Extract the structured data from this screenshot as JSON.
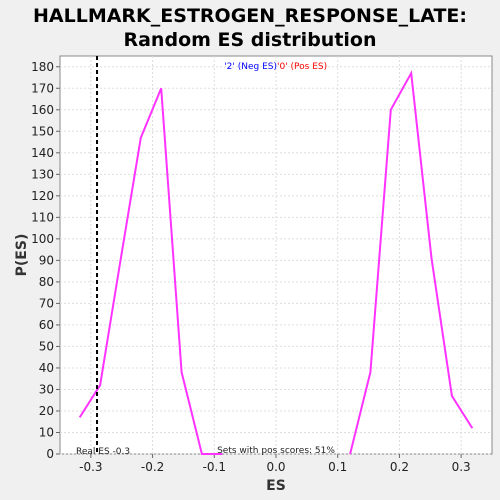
{
  "chart_data": {
    "type": "line",
    "title_line1": "HALLMARK_ESTROGEN_RESPONSE_LATE:",
    "title_line2": "Random ES distribution",
    "xlabel": "ES",
    "ylabel": "P(ES)",
    "xlim": [
      -0.35,
      0.35
    ],
    "ylim": [
      0,
      185
    ],
    "xticks": [
      -0.3,
      -0.2,
      -0.1,
      0.0,
      0.1,
      0.2,
      0.3
    ],
    "xtick_labels": [
      "-0.3",
      "-0.2",
      "-0.1",
      "0.0",
      "0.1",
      "0.2",
      "0.3"
    ],
    "yticks": [
      0,
      10,
      20,
      30,
      40,
      50,
      60,
      70,
      80,
      90,
      100,
      110,
      120,
      130,
      140,
      150,
      160,
      170,
      180
    ],
    "grid": true,
    "legend": {
      "neg_label": "'2' (Neg ES)",
      "pos_label": "'0' (Pos ES)",
      "neg_color": "#0000ff",
      "pos_color": "#ff0000",
      "placement": "top-center"
    },
    "series": [
      {
        "color": "#ff33ff",
        "x": [
          -0.318,
          -0.285,
          -0.252,
          -0.219,
          -0.186,
          -0.153,
          -0.12,
          -0.087
        ],
        "y": [
          17,
          32,
          90,
          147,
          170,
          38,
          0,
          0
        ]
      },
      {
        "color": "#ff33ff",
        "x": [
          0.12,
          0.153,
          0.186,
          0.219,
          0.252,
          0.285,
          0.318
        ],
        "y": [
          0,
          38,
          160,
          177,
          91,
          27,
          12
        ]
      }
    ],
    "real_es": -0.29,
    "real_es_label": "Real ES -0.3",
    "annotation": "Sets with pos scores: 51%"
  }
}
